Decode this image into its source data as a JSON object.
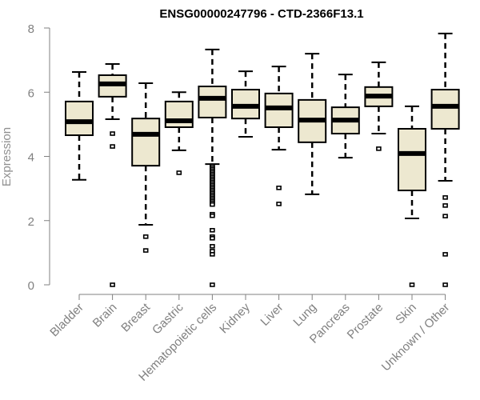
{
  "chart_data": {
    "type": "boxplot",
    "title": "ENSG00000247796 - CTD-2366F13.1",
    "xlabel": "",
    "ylabel": "Expression",
    "ylim": [
      0,
      8
    ],
    "yticks": [
      0,
      2,
      4,
      6,
      8
    ],
    "grid": false,
    "legend": "none",
    "box_fill": "#ede8d0",
    "categories": [
      "Bladder",
      "Brain",
      "Breast",
      "Gastric",
      "Hematopoietic cells",
      "Kidney",
      "Liver",
      "Lung",
      "Pancreas",
      "Prostate",
      "Skin",
      "Unknown / Other"
    ],
    "boxes": [
      {
        "name": "Bladder",
        "whisker_low": 3.27,
        "q1": 4.66,
        "median": 5.08,
        "q3": 5.71,
        "whisker_high": 6.63,
        "outliers": []
      },
      {
        "name": "Brain",
        "whisker_low": 5.16,
        "q1": 5.86,
        "median": 6.26,
        "q3": 6.53,
        "whisker_high": 6.88,
        "outliers": [
          4.71,
          4.31,
          0
        ]
      },
      {
        "name": "Breast",
        "whisker_low": 1.87,
        "q1": 3.71,
        "median": 4.69,
        "q3": 5.18,
        "whisker_high": 6.28,
        "outliers": [
          1.5,
          1.07
        ]
      },
      {
        "name": "Gastric",
        "whisker_low": 4.19,
        "q1": 4.91,
        "median": 5.11,
        "q3": 5.71,
        "whisker_high": 6.0,
        "outliers": [
          3.49
        ]
      },
      {
        "name": "Hematopoietic cells",
        "whisker_low": 3.76,
        "q1": 5.21,
        "median": 5.81,
        "q3": 6.18,
        "whisker_high": 7.33,
        "outliers": [
          3.7,
          3.65,
          3.6,
          3.55,
          3.5,
          3.45,
          3.4,
          3.35,
          3.3,
          3.25,
          3.2,
          3.15,
          3.1,
          3.05,
          3.0,
          2.95,
          2.9,
          2.85,
          2.8,
          2.75,
          2.7,
          2.65,
          2.6,
          2.55,
          2.5,
          2.2,
          2.15,
          1.7,
          1.5,
          1.45,
          1.2,
          1.05,
          0.95,
          0
        ]
      },
      {
        "name": "Kidney",
        "whisker_low": 4.61,
        "q1": 5.18,
        "median": 5.56,
        "q3": 6.08,
        "whisker_high": 6.65,
        "outliers": []
      },
      {
        "name": "Liver",
        "whisker_low": 4.21,
        "q1": 4.91,
        "median": 5.51,
        "q3": 5.96,
        "whisker_high": 6.8,
        "outliers": [
          3.02,
          2.52
        ]
      },
      {
        "name": "Lung",
        "whisker_low": 2.82,
        "q1": 4.44,
        "median": 5.13,
        "q3": 5.76,
        "whisker_high": 7.2,
        "outliers": []
      },
      {
        "name": "Pancreas",
        "whisker_low": 3.96,
        "q1": 4.71,
        "median": 5.13,
        "q3": 5.53,
        "whisker_high": 6.55,
        "outliers": []
      },
      {
        "name": "Prostate",
        "whisker_low": 4.71,
        "q1": 5.56,
        "median": 5.88,
        "q3": 6.16,
        "whisker_high": 6.93,
        "outliers": [
          4.24
        ]
      },
      {
        "name": "Skin",
        "whisker_low": 2.07,
        "q1": 2.94,
        "median": 4.09,
        "q3": 4.86,
        "whisker_high": 5.56,
        "outliers": [
          0
        ]
      },
      {
        "name": "Unknown / Other",
        "whisker_low": 3.24,
        "q1": 4.86,
        "median": 5.56,
        "q3": 6.08,
        "whisker_high": 7.83,
        "outliers": [
          2.72,
          2.47,
          2.14,
          0.95,
          0
        ]
      }
    ]
  }
}
